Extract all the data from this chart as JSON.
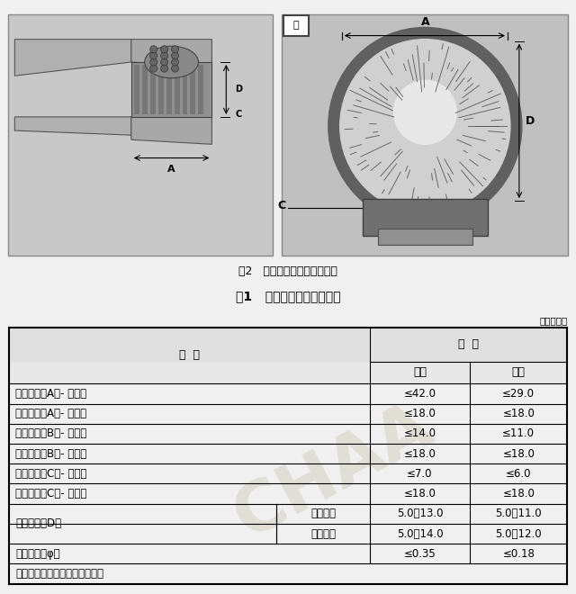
{
  "fig_caption": "图2   电动牙刷刷头尺寸示意图",
  "table_title": "表1   电动牙刷刷头规格尺寸",
  "unit_label": "单位为毫米",
  "rows": [
    [
      "毛面长度（A）- 摆动式",
      "",
      "≤42.0",
      "≤29.0"
    ],
    [
      "毛面长度（A）- 旋转式",
      "",
      "≤18.0",
      "≤18.0"
    ],
    [
      "毛面宽度（B）- 摆动式",
      "",
      "≤14.0",
      "≤11.0"
    ],
    [
      "毛面宽度（B）- 旋转式",
      "",
      "≤18.0",
      "≤18.0"
    ],
    [
      "刷头厚度（C）- 摆动式",
      "",
      "≤7.0",
      "≤6.0"
    ],
    [
      "刷头厚度（C）- 旋转式",
      "",
      "≤18.0",
      "≤18.0"
    ],
    [
      "刷毛高度（D）",
      "平行毛型",
      "5.0～13.0",
      "5.0～11.0"
    ],
    [
      "刷毛高度（D）",
      "异形毛型",
      "5.0～14.0",
      "5.0～12.0"
    ],
    [
      "单丝直径（φ）",
      "",
      "≤0.35",
      "≤0.18"
    ]
  ],
  "note": "注：注胶、硅胶类刷毛不适用。",
  "watermark_text": "CHAA",
  "watermark_color": "#ccc4b0"
}
